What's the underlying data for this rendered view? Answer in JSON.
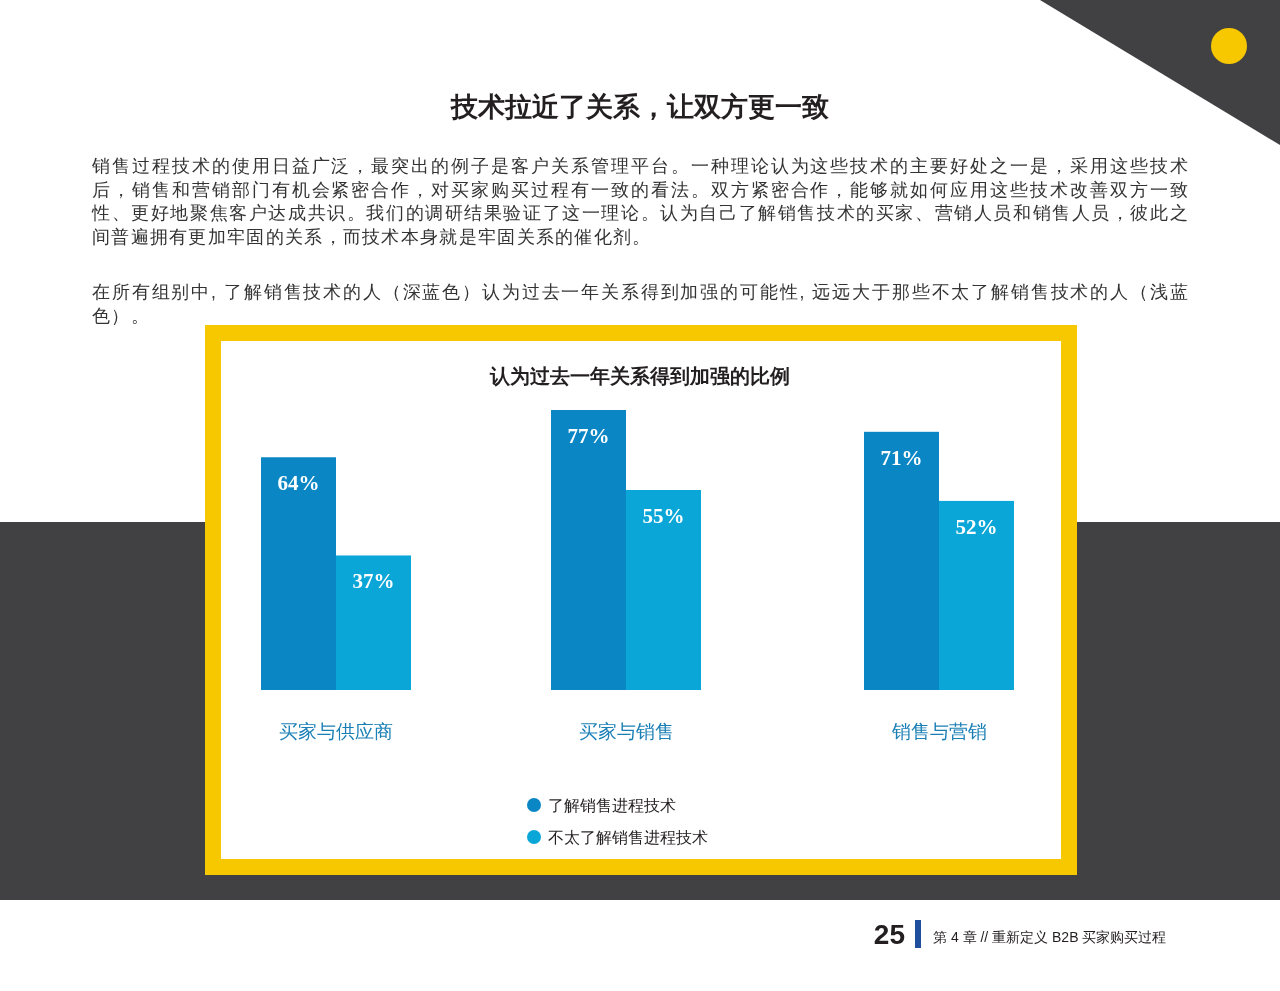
{
  "chart_data": {
    "type": "bar",
    "title": "技术拉近了关系，让双方更一致",
    "subtitle": "认为过去一年关系得到加强的比例",
    "categories": [
      "买家与供应商",
      "买家与销售",
      "销售与营销"
    ],
    "series": [
      {
        "name": "了解销售进程技术",
        "color": "#0a86c4",
        "values": [
          64,
          77,
          71
        ],
        "value_labels": [
          "64%",
          "77%",
          "71%"
        ]
      },
      {
        "name": "不太了解销售进程技术",
        "color": "#0aa6d8",
        "values": [
          37,
          55,
          52
        ],
        "value_labels": [
          "37%",
          "55%",
          "52%"
        ]
      }
    ],
    "legend": "bottom",
    "annotations": [
      "销售过程技术的使用日益广泛，最突出的例子是客户关系管理平台。一种理论认为这些技术的主要好处之一是，采用这些技术后，销售和营销部门有机会紧密合作，对买家购买过程有一致的看法。双方紧密合作，能够就如何应用这些技术改善双方一致性、更好地聚焦客户达成共识。我们的调研结果验证了这一理论。认为自己了解销售技术的买家、营销人员和销售人员，彼此之间普遍拥有更加牢固的关系，而技术本身就是牢固关系的催化剂。",
      "在所有组别中, 了解销售技术的人（深蓝色）认为过去一年关系得到加强的可能性, 远远大于那些不太了解销售技术的人（浅蓝色）。",
      "25",
      "第 4 章 // 重新定义 B2B 买家购买过程"
    ]
  }
}
